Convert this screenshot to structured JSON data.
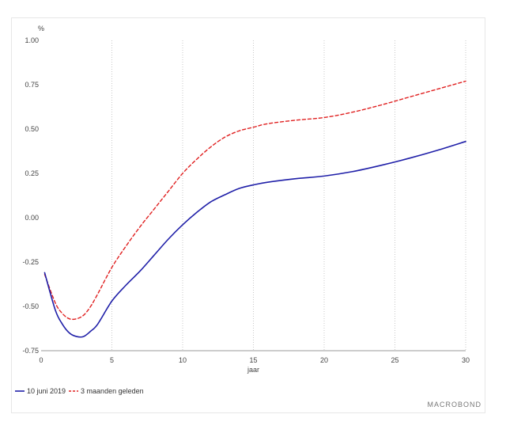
{
  "chart_data": {
    "type": "line",
    "ylabel": "%",
    "xlabel": "jaar",
    "xlim": [
      0,
      30
    ],
    "ylim": [
      -0.75,
      1.0
    ],
    "x_ticks": [
      0,
      5,
      10,
      15,
      20,
      25,
      30
    ],
    "x_tick_labels": [
      "0",
      "5",
      "10",
      "15",
      "20",
      "25",
      "30"
    ],
    "y_ticks": [
      -0.75,
      -0.5,
      -0.25,
      0.0,
      0.25,
      0.5,
      0.75,
      1.0
    ],
    "y_tick_labels": [
      "-0.75",
      "-0.50",
      "-0.25",
      "0.00",
      "0.25",
      "0.50",
      "0.75",
      "1.00"
    ],
    "grid": "vertical",
    "legend_position": "bottom-left",
    "series": [
      {
        "name": "10 juni 2019",
        "color": "#1f1fa8",
        "style": "solid",
        "x": [
          0.25,
          1,
          1.5,
          2,
          2.5,
          3,
          3.5,
          4,
          5,
          6,
          7,
          8,
          9,
          10,
          11,
          12,
          13,
          14,
          15,
          16,
          18,
          20,
          22,
          24,
          26,
          28,
          30
        ],
        "values": [
          -0.31,
          -0.52,
          -0.6,
          -0.65,
          -0.67,
          -0.67,
          -0.64,
          -0.6,
          -0.47,
          -0.38,
          -0.3,
          -0.21,
          -0.12,
          -0.04,
          0.03,
          0.09,
          0.13,
          0.165,
          0.185,
          0.2,
          0.22,
          0.235,
          0.26,
          0.295,
          0.335,
          0.38,
          0.43
        ]
      },
      {
        "name": "3 maanden geleden",
        "color": "#e02020",
        "style": "dashed",
        "x": [
          0.25,
          1,
          1.5,
          2,
          2.5,
          3,
          3.5,
          4,
          5,
          6,
          7,
          8,
          9,
          10,
          11,
          12,
          13,
          14,
          15,
          16,
          18,
          20,
          22,
          24,
          26,
          28,
          30
        ],
        "values": [
          -0.32,
          -0.48,
          -0.54,
          -0.57,
          -0.57,
          -0.55,
          -0.5,
          -0.43,
          -0.28,
          -0.16,
          -0.05,
          0.05,
          0.15,
          0.25,
          0.33,
          0.4,
          0.455,
          0.49,
          0.51,
          0.53,
          0.55,
          0.565,
          0.595,
          0.635,
          0.68,
          0.725,
          0.77
        ]
      }
    ]
  },
  "brand": "MACROBOND"
}
